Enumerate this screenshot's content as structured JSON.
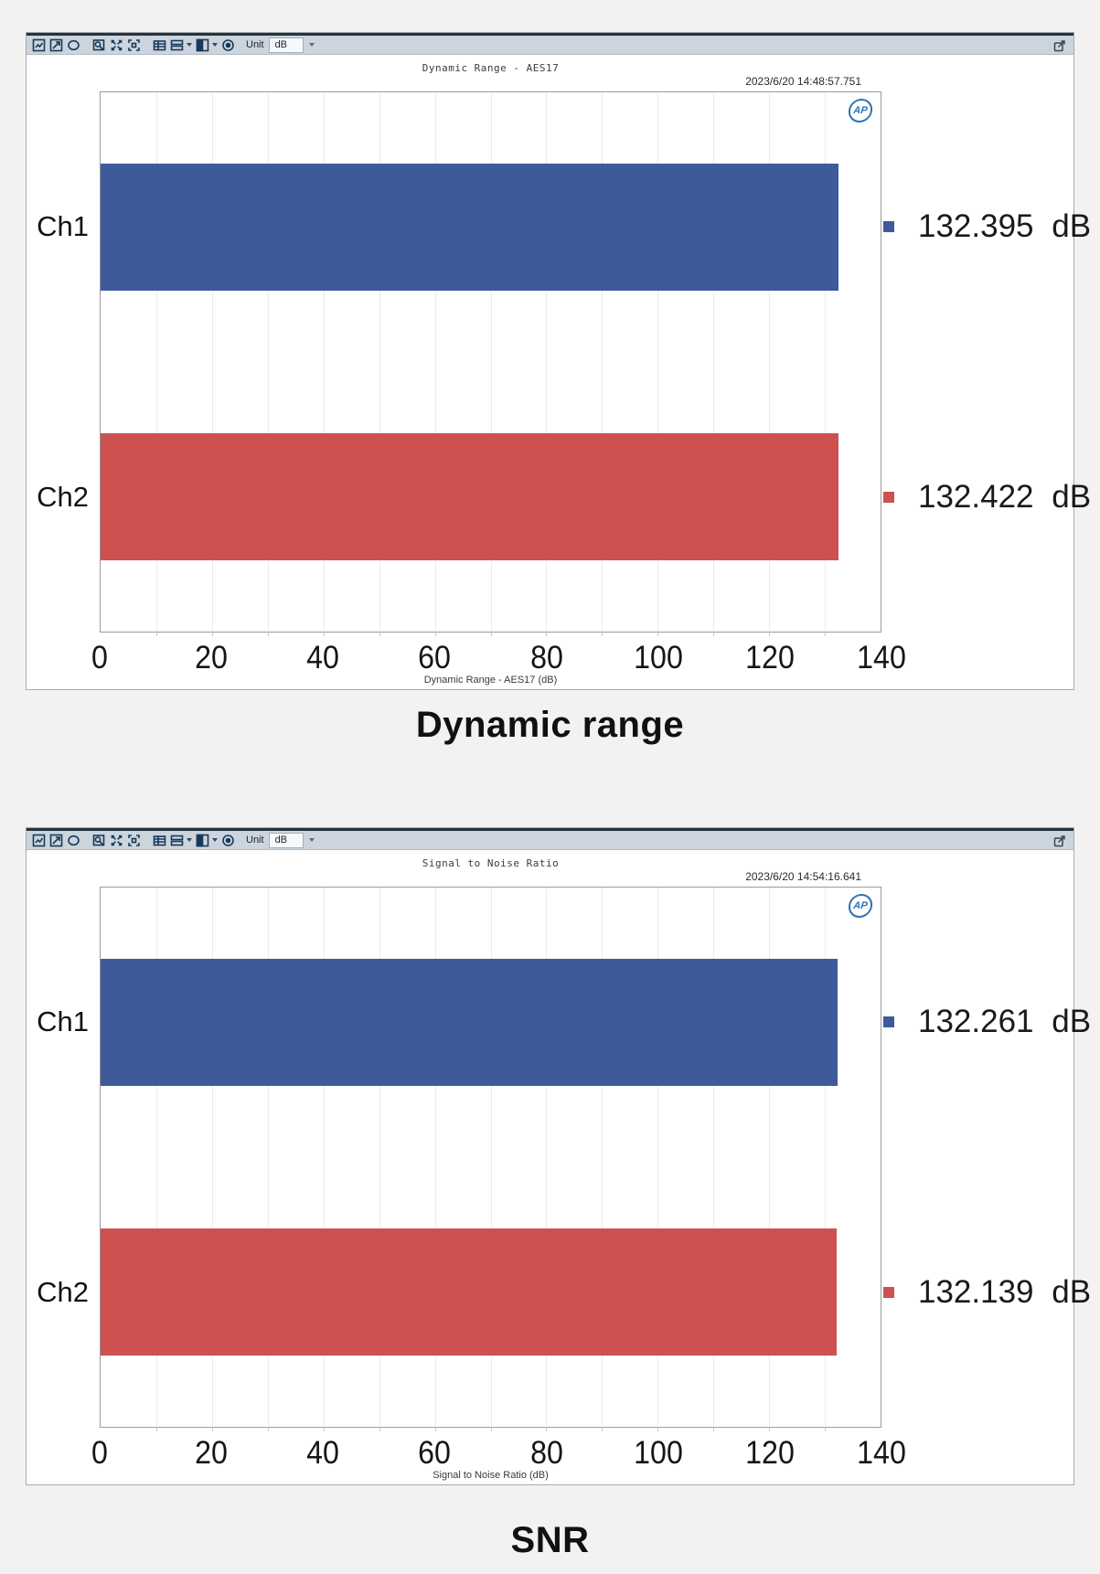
{
  "toolbar": {
    "unit_label": "Unit",
    "unit_value": "dB",
    "icon_names": [
      "graph-icon",
      "zoom-region-icon",
      "pan-icon",
      "zoom-tool-icon",
      "expand-icon",
      "fit-icon",
      "data-table-icon",
      "panels-icon",
      "display-split-icon",
      "record-icon",
      "export-icon"
    ]
  },
  "logo_text": "AP",
  "chart_data": [
    {
      "type": "bar",
      "orientation": "horizontal",
      "title": "Dynamic Range - AES17",
      "timestamp": "2023/6/20 14:48:57.751",
      "categories": [
        "Ch1",
        "Ch2"
      ],
      "values": [
        132.395,
        132.422
      ],
      "value_labels": [
        "132.395 dB",
        "132.422 dB"
      ],
      "bar_colors": [
        "#3e5a9b",
        "#cd5151"
      ],
      "unit": "dB",
      "xlabel": "Dynamic Range - AES17 (dB)",
      "xlim": [
        0,
        140
      ],
      "xticks": [
        0,
        20,
        40,
        60,
        80,
        100,
        120,
        140
      ],
      "minor_grid_step": 10,
      "grid": true,
      "legend_position": "value markers right of plot",
      "caption": "Dynamic range"
    },
    {
      "type": "bar",
      "orientation": "horizontal",
      "title": "Signal to Noise Ratio",
      "timestamp": "2023/6/20 14:54:16.641",
      "categories": [
        "Ch1",
        "Ch2"
      ],
      "values": [
        132.261,
        132.139
      ],
      "value_labels": [
        "132.261 dB",
        "132.139 dB"
      ],
      "bar_colors": [
        "#3e5a9b",
        "#cd5151"
      ],
      "unit": "dB",
      "xlabel": "Signal to Noise Ratio (dB)",
      "xlim": [
        0,
        140
      ],
      "xticks": [
        0,
        20,
        40,
        60,
        80,
        100,
        120,
        140
      ],
      "minor_grid_step": 10,
      "grid": true,
      "legend_position": "value markers right of plot",
      "caption": "SNR"
    }
  ]
}
